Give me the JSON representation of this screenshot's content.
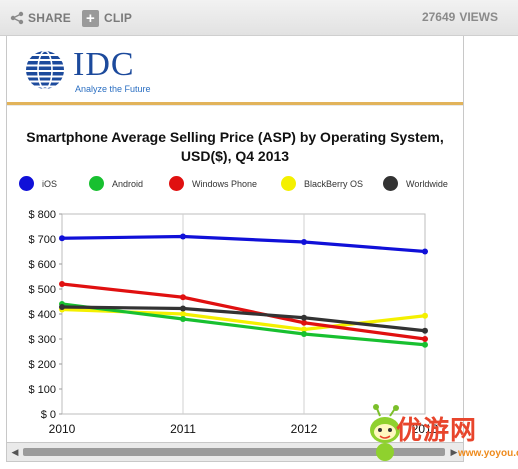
{
  "toolbar": {
    "share_label": "SHARE",
    "clip_label": "CLIP",
    "views_count": "27649",
    "views_label": "VIEWS"
  },
  "logo": {
    "wordmark": "IDC",
    "tagline": "Analyze the Future"
  },
  "watermark": {
    "text": "优游网",
    "url": "www.yoyou.com"
  },
  "colors": {
    "iOS": "#1010d8",
    "Android": "#18c030",
    "Windows Phone": "#e01010",
    "BlackBerry OS": "#f4f000",
    "Worldwide": "#333333"
  },
  "chart_data": {
    "type": "line",
    "title_line1": "Smartphone Average Selling Price (ASP) by Operating System,",
    "title_line2": "USD($), Q4 2013",
    "xlabel": "",
    "ylabel": "",
    "x": [
      "2010",
      "2011",
      "2012",
      "2013"
    ],
    "x_tick_labels": [
      "2010",
      "2011",
      "2012",
      "2013"
    ],
    "ylim": [
      0,
      800
    ],
    "y_ticks": [
      0,
      100,
      200,
      300,
      400,
      500,
      600,
      700,
      800
    ],
    "y_tick_labels": [
      "$ 0",
      "$ 100",
      "$ 200",
      "$ 300",
      "$ 400",
      "$ 500",
      "$ 600",
      "$ 700",
      "$ 800"
    ],
    "grid": "vertical",
    "legend_position": "top",
    "series": [
      {
        "name": "iOS",
        "values": [
          703,
          710,
          688,
          650
        ]
      },
      {
        "name": "Android",
        "values": [
          440,
          380,
          320,
          277
        ]
      },
      {
        "name": "Windows Phone",
        "values": [
          520,
          467,
          365,
          300
        ]
      },
      {
        "name": "BlackBerry OS",
        "values": [
          418,
          400,
          338,
          393
        ]
      },
      {
        "name": "Worldwide",
        "values": [
          428,
          422,
          385,
          333
        ]
      }
    ]
  }
}
